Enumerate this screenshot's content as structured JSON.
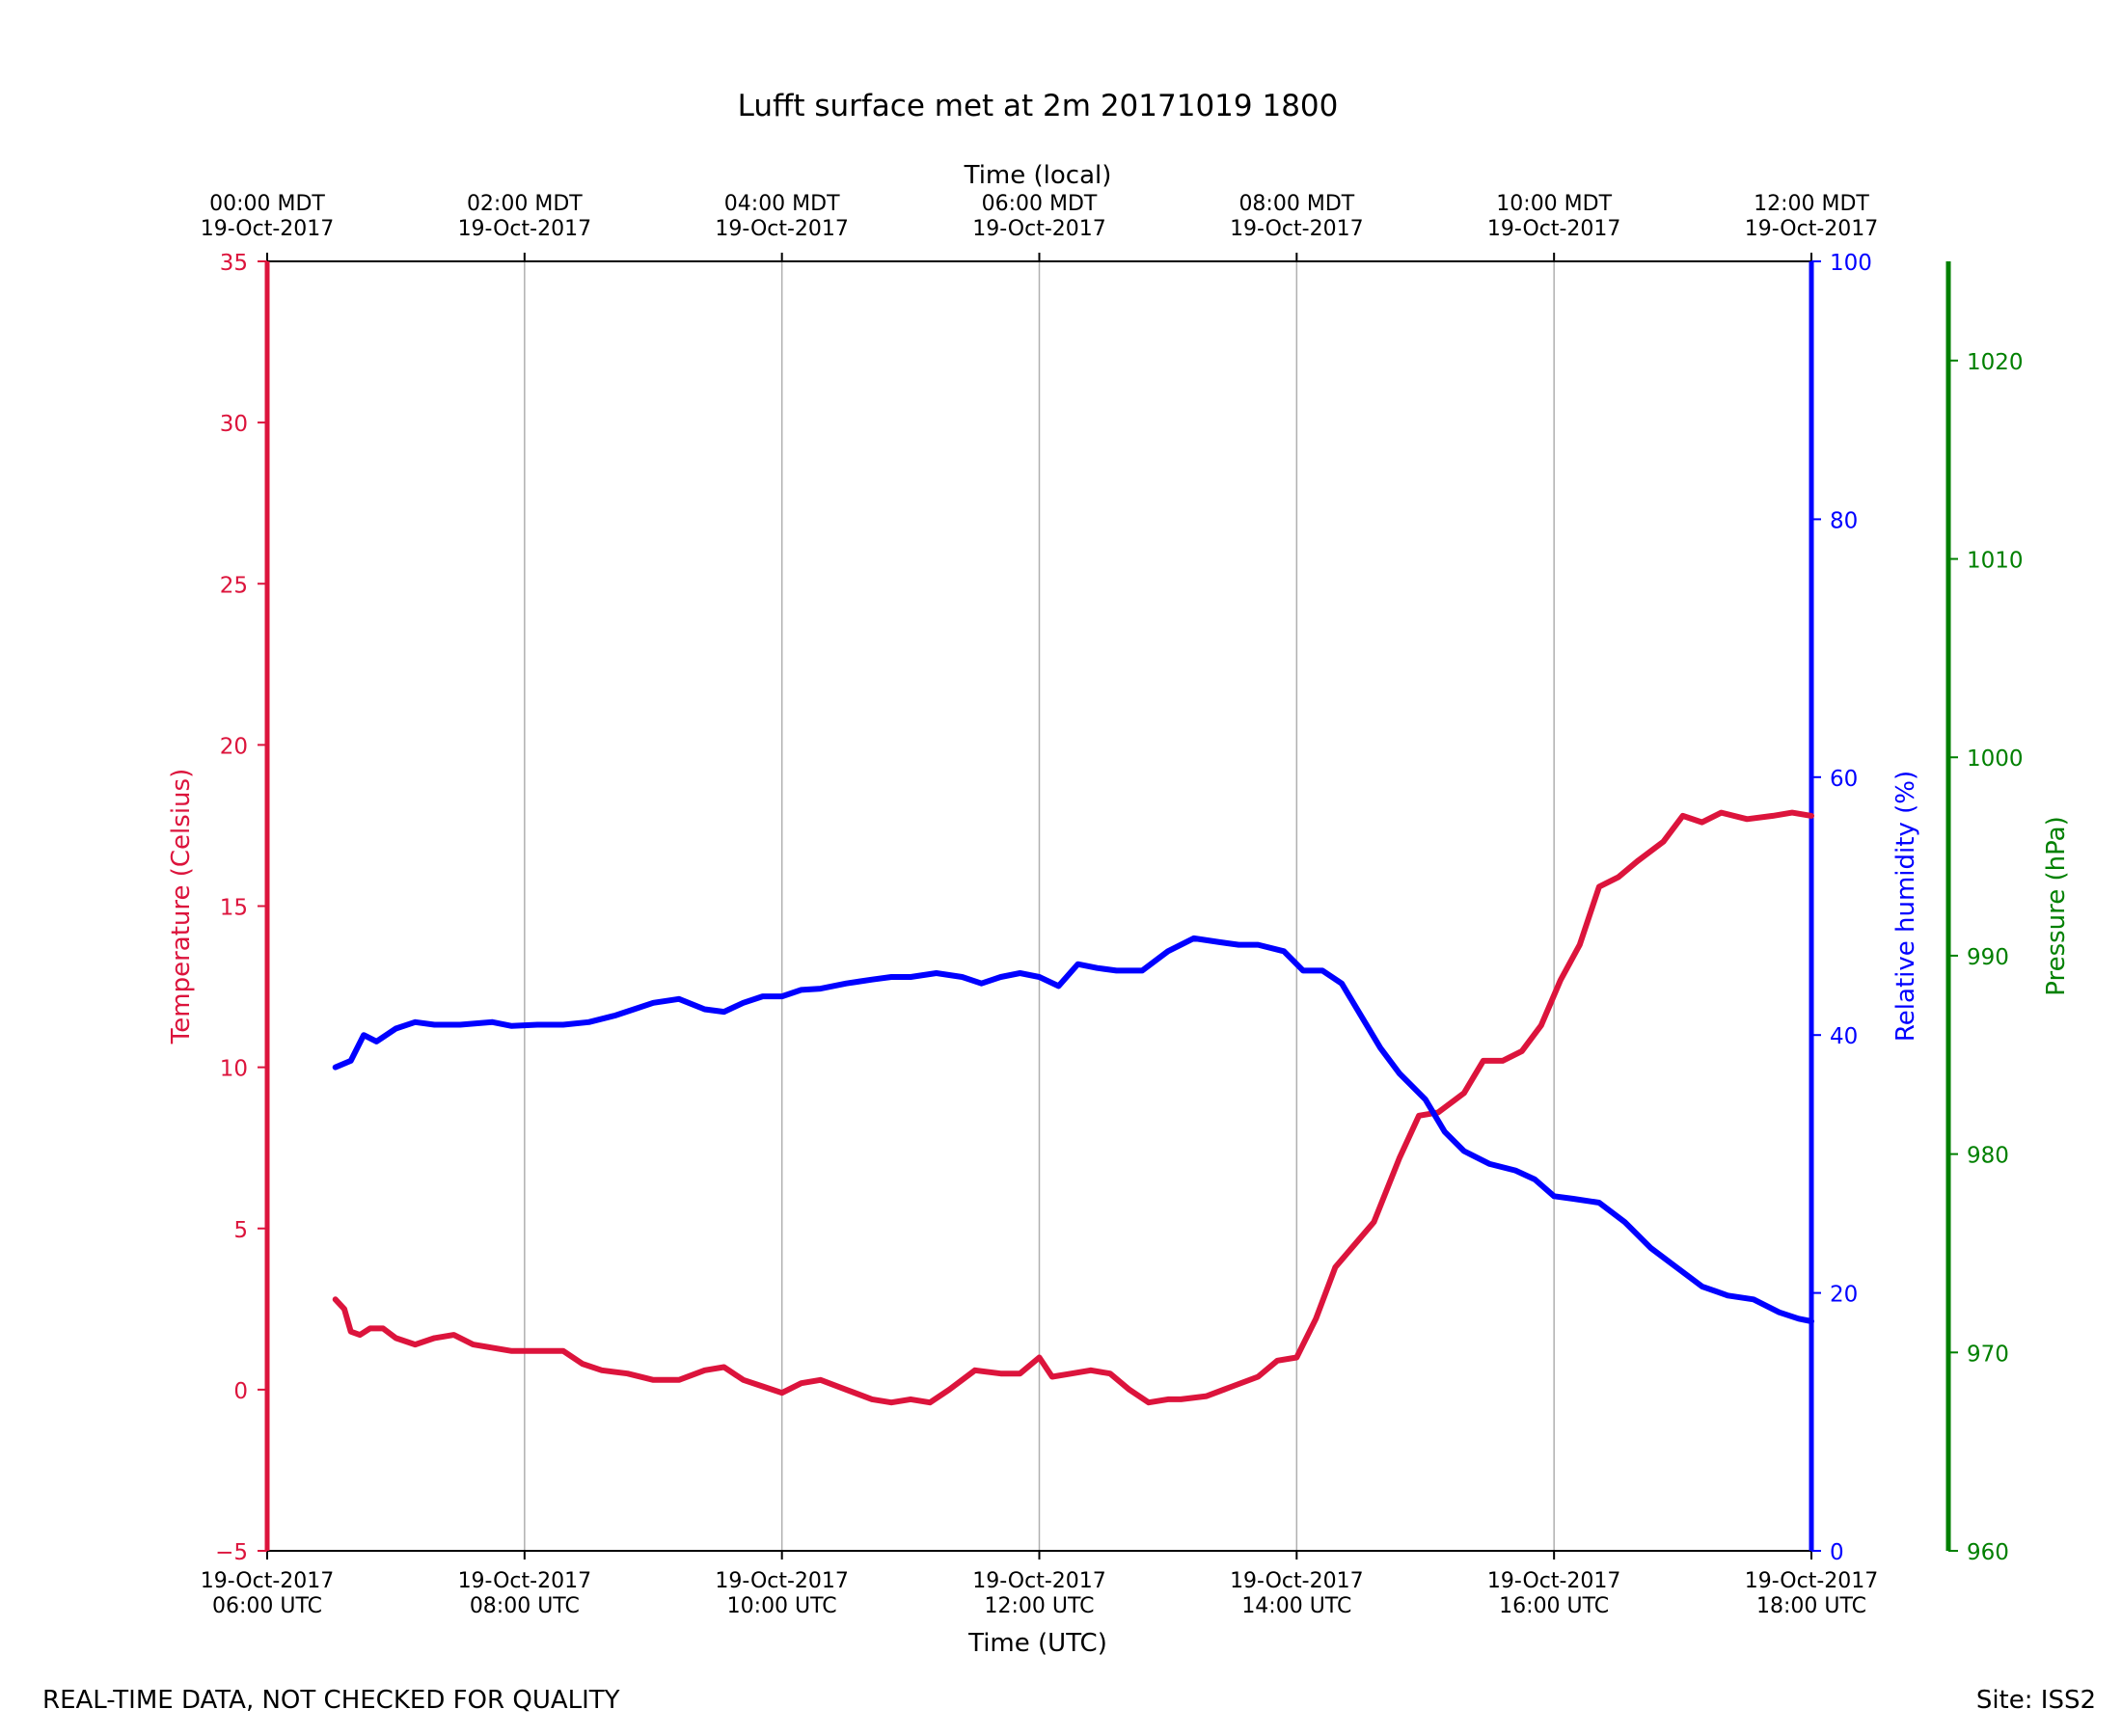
{
  "chart_data": {
    "type": "line",
    "title": "Lufft surface met at 2m 20171019 1800",
    "xlabel": "Time (UTC)",
    "top_xlabel": "Time (local)",
    "x_ticks_utc": [
      {
        "date": "19-Oct-2017",
        "time": "06:00 UTC",
        "hour": 6
      },
      {
        "date": "19-Oct-2017",
        "time": "08:00 UTC",
        "hour": 8
      },
      {
        "date": "19-Oct-2017",
        "time": "10:00 UTC",
        "hour": 10
      },
      {
        "date": "19-Oct-2017",
        "time": "12:00 UTC",
        "hour": 12
      },
      {
        "date": "19-Oct-2017",
        "time": "14:00 UTC",
        "hour": 14
      },
      {
        "date": "19-Oct-2017",
        "time": "16:00 UTC",
        "hour": 16
      },
      {
        "date": "19-Oct-2017",
        "time": "18:00 UTC",
        "hour": 18
      }
    ],
    "x_ticks_local": [
      {
        "time": "00:00 MDT",
        "date": "19-Oct-2017",
        "hour": 6
      },
      {
        "time": "02:00 MDT",
        "date": "19-Oct-2017",
        "hour": 8
      },
      {
        "time": "04:00 MDT",
        "date": "19-Oct-2017",
        "hour": 10
      },
      {
        "time": "06:00 MDT",
        "date": "19-Oct-2017",
        "hour": 12
      },
      {
        "time": "08:00 MDT",
        "date": "19-Oct-2017",
        "hour": 14
      },
      {
        "time": "10:00 MDT",
        "date": "19-Oct-2017",
        "hour": 16
      },
      {
        "time": "12:00 MDT",
        "date": "19-Oct-2017",
        "hour": 18
      }
    ],
    "xlim": [
      6,
      18
    ],
    "grid": "vertical",
    "axes": {
      "temperature": {
        "label": "Temperature (Celsius)",
        "color": "#dc143c",
        "ylim": [
          -5,
          35
        ],
        "ticks": [
          "−5",
          "0",
          "5",
          "10",
          "15",
          "20",
          "25",
          "30",
          "35"
        ],
        "tick_values": [
          -5,
          0,
          5,
          10,
          15,
          20,
          25,
          30,
          35
        ]
      },
      "humidity": {
        "label": "Relative humidity (%)",
        "color": "#0000ff",
        "ylim": [
          0,
          100
        ],
        "ticks": [
          "0",
          "20",
          "40",
          "60",
          "80",
          "100"
        ],
        "tick_values": [
          0,
          20,
          40,
          60,
          80,
          100
        ]
      },
      "pressure": {
        "label": "Pressure (hPa)",
        "color": "#008000",
        "ylim": [
          960,
          1025
        ],
        "ticks": [
          "960",
          "970",
          "980",
          "990",
          "1000",
          "1010",
          "1020"
        ],
        "tick_values": [
          960,
          970,
          980,
          990,
          1000,
          1010,
          1020
        ]
      }
    },
    "series": [
      {
        "name": "Temperature",
        "axis": "temperature",
        "color": "#dc143c",
        "x": [
          6.53,
          6.6,
          6.65,
          6.72,
          6.8,
          6.9,
          7.0,
          7.15,
          7.3,
          7.45,
          7.6,
          7.75,
          7.9,
          8.1,
          8.3,
          8.45,
          8.6,
          8.8,
          9.0,
          9.2,
          9.4,
          9.55,
          9.7,
          9.85,
          10.0,
          10.15,
          10.3,
          10.5,
          10.7,
          10.85,
          11.0,
          11.15,
          11.3,
          11.5,
          11.7,
          11.85,
          12.0,
          12.1,
          12.25,
          12.4,
          12.55,
          12.7,
          12.85,
          13.0,
          13.1,
          13.3,
          13.5,
          13.7,
          13.85,
          14.0,
          14.15,
          14.3,
          14.45,
          14.6,
          14.8,
          14.95,
          15.1,
          15.3,
          15.45,
          15.6,
          15.75,
          15.9,
          16.05,
          16.2,
          16.35,
          16.5,
          16.65,
          16.85,
          17.0,
          17.15,
          17.3,
          17.5,
          17.7,
          17.85,
          18.0
        ],
        "values": [
          2.8,
          2.5,
          1.8,
          1.7,
          1.9,
          1.9,
          1.6,
          1.4,
          1.6,
          1.7,
          1.4,
          1.3,
          1.2,
          1.2,
          1.2,
          0.8,
          0.6,
          0.5,
          0.3,
          0.3,
          0.6,
          0.7,
          0.3,
          0.1,
          -0.1,
          0.2,
          0.3,
          0.0,
          -0.3,
          -0.4,
          -0.3,
          -0.4,
          0.0,
          0.6,
          0.5,
          0.5,
          1.0,
          0.4,
          0.5,
          0.6,
          0.5,
          0.0,
          -0.4,
          -0.3,
          -0.3,
          -0.2,
          0.1,
          0.4,
          0.9,
          1.0,
          2.2,
          3.8,
          4.5,
          5.2,
          7.2,
          8.5,
          8.6,
          9.2,
          10.2,
          10.2,
          10.5,
          11.3,
          12.7,
          13.8,
          15.6,
          15.9,
          16.4,
          17.0,
          17.8,
          17.6,
          17.9,
          17.7,
          17.8,
          17.9,
          17.8
        ]
      },
      {
        "name": "Relative humidity",
        "axis": "humidity",
        "color": "#0000ff",
        "x": [
          6.53,
          6.65,
          6.75,
          6.85,
          7.0,
          7.15,
          7.3,
          7.5,
          7.75,
          7.9,
          8.1,
          8.3,
          8.5,
          8.7,
          8.85,
          9.0,
          9.2,
          9.4,
          9.55,
          9.7,
          9.85,
          10.0,
          10.15,
          10.3,
          10.5,
          10.7,
          10.85,
          11.0,
          11.2,
          11.4,
          11.55,
          11.7,
          11.85,
          12.0,
          12.15,
          12.3,
          12.45,
          12.6,
          12.8,
          13.0,
          13.2,
          13.4,
          13.55,
          13.7,
          13.9,
          14.05,
          14.2,
          14.35,
          14.5,
          14.65,
          14.8,
          15.0,
          15.15,
          15.3,
          15.5,
          15.7,
          15.85,
          16.0,
          16.15,
          16.35,
          16.55,
          16.75,
          16.95,
          17.15,
          17.35,
          17.55,
          17.75,
          17.9,
          18.0
        ],
        "values": [
          37.5,
          38.0,
          40.0,
          39.5,
          40.5,
          41.0,
          40.8,
          40.8,
          41.0,
          40.7,
          40.8,
          40.8,
          41.0,
          41.5,
          42.0,
          42.5,
          42.8,
          42.0,
          41.8,
          42.5,
          43.0,
          43.0,
          43.5,
          43.6,
          44.0,
          44.3,
          44.5,
          44.5,
          44.8,
          44.5,
          44.0,
          44.5,
          44.8,
          44.5,
          43.8,
          45.5,
          45.2,
          45.0,
          45.0,
          46.5,
          47.5,
          47.2,
          47.0,
          47.0,
          46.5,
          45.0,
          45.0,
          44.0,
          41.5,
          39.0,
          37.0,
          35.0,
          32.5,
          31.0,
          30.0,
          29.5,
          28.8,
          27.5,
          27.3,
          27.0,
          25.5,
          23.5,
          22.0,
          20.5,
          19.8,
          19.5,
          18.5,
          18.0,
          17.8
        ]
      }
    ],
    "footer_left": "REAL-TIME DATA, NOT CHECKED FOR QUALITY",
    "footer_right": "Site: ISS2"
  }
}
